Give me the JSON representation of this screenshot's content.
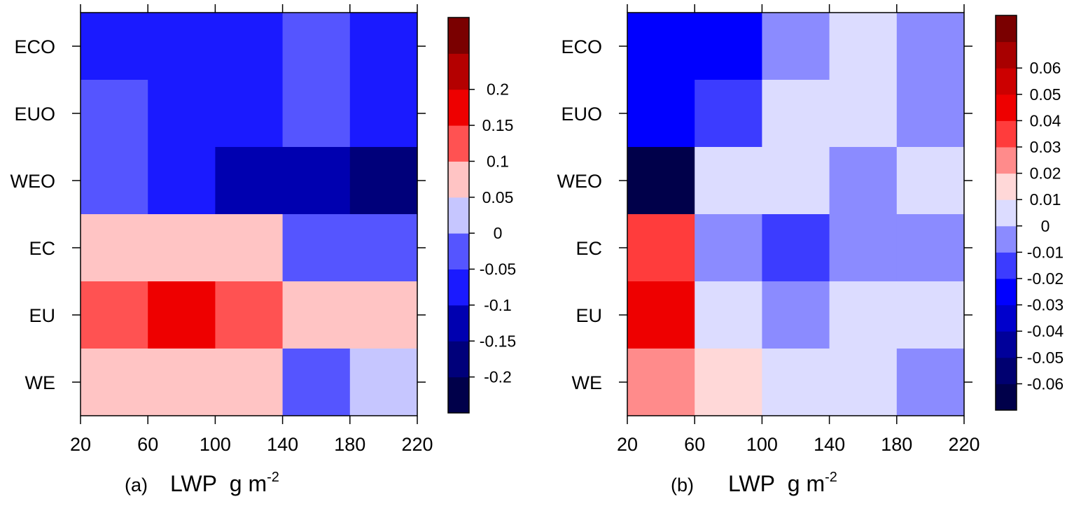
{
  "chart_data": [
    {
      "type": "heatmap",
      "panel_label": "(a)",
      "xlabel": "LWP g m",
      "xlabel_exponent": "-2",
      "x_edges": [
        20,
        60,
        100,
        140,
        180,
        220
      ],
      "x_tick_labels": [
        "20",
        "60",
        "100",
        "140",
        "180",
        "220"
      ],
      "rows": [
        "ECO",
        "EUO",
        "WEO",
        "EC",
        "EU",
        "WE"
      ],
      "values": [
        [
          -0.075,
          -0.075,
          -0.075,
          -0.025,
          -0.075
        ],
        [
          -0.025,
          -0.075,
          -0.075,
          -0.025,
          -0.075
        ],
        [
          -0.025,
          -0.075,
          -0.125,
          -0.125,
          -0.175
        ],
        [
          0.075,
          0.075,
          0.075,
          -0.025,
          -0.025
        ],
        [
          0.125,
          0.175,
          0.125,
          0.075,
          0.075
        ],
        [
          0.075,
          0.075,
          0.075,
          -0.025,
          0.025
        ]
      ],
      "colorbar": {
        "levels": [
          -0.2,
          -0.15,
          -0.1,
          -0.05,
          0,
          0.05,
          0.1,
          0.15,
          0.2
        ],
        "level_labels": [
          "-0.2",
          "-0.15",
          "-0.1",
          "-0.05",
          "0",
          "0.05",
          "0.1",
          "0.15",
          "0.2"
        ],
        "colors": [
          "#00004a",
          "#00007a",
          "#0000b0",
          "#1a1aff",
          "#5555ff",
          "#c6c6ff",
          "#ffc4c4",
          "#ff5252",
          "#ee0000",
          "#b40000",
          "#7a0000"
        ]
      }
    },
    {
      "type": "heatmap",
      "panel_label": "(b)",
      "xlabel": "LWP g m",
      "xlabel_exponent": "-2",
      "x_edges": [
        20,
        60,
        100,
        140,
        180,
        220
      ],
      "x_tick_labels": [
        "20",
        "60",
        "100",
        "140",
        "180",
        "220"
      ],
      "rows": [
        "ECO",
        "EUO",
        "WEO",
        "EC",
        "EU",
        "WE"
      ],
      "values": [
        [
          -0.025,
          -0.025,
          -0.005,
          0.005,
          -0.005
        ],
        [
          -0.025,
          -0.015,
          0.005,
          0.005,
          -0.005
        ],
        [
          -0.065,
          0.005,
          0.005,
          -0.005,
          0.005
        ],
        [
          0.035,
          -0.005,
          -0.015,
          -0.005,
          -0.005
        ],
        [
          0.045,
          0.005,
          -0.005,
          0.005,
          0.005
        ],
        [
          0.025,
          0.015,
          0.005,
          0.005,
          -0.005
        ]
      ],
      "colorbar": {
        "levels": [
          -0.06,
          -0.05,
          -0.04,
          -0.03,
          -0.02,
          -0.01,
          0,
          0.01,
          0.02,
          0.03,
          0.04,
          0.05,
          0.06
        ],
        "level_labels": [
          "-0.06",
          "-0.05",
          "-0.04",
          "-0.03",
          "-0.02",
          "-0.01",
          "0",
          "0.01",
          "0.02",
          "0.03",
          "0.04",
          "0.05",
          "0.06"
        ],
        "colors": [
          "#00004a",
          "#000070",
          "#00009a",
          "#0000cc",
          "#0000ff",
          "#3c3cff",
          "#8b8bff",
          "#dcdcff",
          "#ffd8d8",
          "#ff8b8b",
          "#ff3c3c",
          "#ee0000",
          "#cc0000",
          "#a80000",
          "#7a0000"
        ]
      }
    }
  ]
}
